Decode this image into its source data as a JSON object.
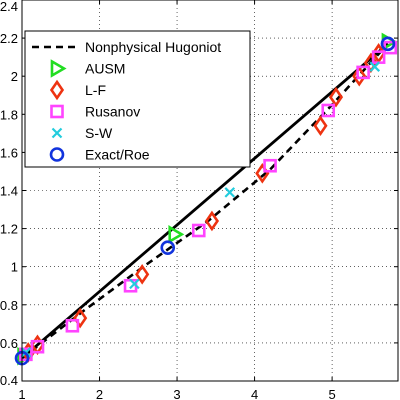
{
  "chart_data": {
    "type": "scatter",
    "title": "",
    "xlabel": "",
    "ylabel": "",
    "xlim": [
      1,
      5.85
    ],
    "ylim": [
      0.4,
      2.4
    ],
    "xticks": [
      "1",
      "2",
      "3",
      "4",
      "5"
    ],
    "xtick_values": [
      1,
      2,
      3,
      4,
      5
    ],
    "yticks": [
      "0.4",
      "0.6",
      "0.8",
      "1",
      "1.2",
      "1.4",
      "1.6",
      "1.8",
      "2",
      "2.2",
      "2.4"
    ],
    "ytick_values": [
      0.4,
      0.6,
      0.8,
      1.0,
      1.2,
      1.4,
      1.6,
      1.8,
      2.0,
      2.2,
      2.4
    ],
    "grid": "dotted",
    "legend_position": "top-left",
    "series": [
      {
        "name": "",
        "kind": "line",
        "style": "solid",
        "color": "#000000",
        "points": [
          [
            1.0,
            0.52
          ],
          [
            5.72,
            2.17
          ]
        ]
      },
      {
        "name": "Nonphysical Hugoniot",
        "kind": "line",
        "style": "dashed",
        "color": "#000000",
        "points": [
          [
            1.0,
            0.52
          ],
          [
            1.8,
            0.77
          ],
          [
            2.6,
            1.01
          ],
          [
            3.4,
            1.24
          ],
          [
            4.2,
            1.51
          ],
          [
            5.0,
            1.85
          ],
          [
            5.72,
            2.17
          ]
        ]
      },
      {
        "name": "AUSM",
        "kind": "marker",
        "marker": "triangle-right",
        "color": "#22dd22",
        "points": [
          [
            1.02,
            0.53
          ],
          [
            2.97,
            1.17
          ],
          [
            5.72,
            2.18
          ]
        ]
      },
      {
        "name": "L-F",
        "kind": "marker",
        "marker": "diamond",
        "color": "#ee3311",
        "points": [
          [
            1.08,
            0.55
          ],
          [
            1.2,
            0.59
          ],
          [
            1.75,
            0.73
          ],
          [
            2.55,
            0.96
          ],
          [
            3.45,
            1.24
          ],
          [
            4.1,
            1.49
          ],
          [
            4.85,
            1.74
          ],
          [
            5.05,
            1.89
          ],
          [
            5.35,
            2.0
          ],
          [
            5.5,
            2.07
          ],
          [
            5.6,
            2.12
          ]
        ]
      },
      {
        "name": "Rusanov",
        "kind": "marker",
        "marker": "square",
        "color": "#ff44ff",
        "points": [
          [
            1.05,
            0.54
          ],
          [
            1.2,
            0.58
          ],
          [
            1.65,
            0.69
          ],
          [
            2.4,
            0.9
          ],
          [
            3.28,
            1.19
          ],
          [
            4.2,
            1.53
          ],
          [
            4.95,
            1.82
          ],
          [
            5.4,
            2.02
          ],
          [
            5.6,
            2.1
          ],
          [
            5.75,
            2.15
          ]
        ]
      },
      {
        "name": "S-W",
        "kind": "marker",
        "marker": "x",
        "color": "#22ccdd",
        "points": [
          [
            1.05,
            0.55
          ],
          [
            2.45,
            0.91
          ],
          [
            3.68,
            1.39
          ],
          [
            5.55,
            2.05
          ]
        ]
      },
      {
        "name": "Exact/Roe",
        "kind": "marker",
        "marker": "circle",
        "color": "#1133dd",
        "points": [
          [
            1.0,
            0.52
          ],
          [
            2.88,
            1.1
          ],
          [
            5.72,
            2.17
          ]
        ]
      }
    ]
  }
}
